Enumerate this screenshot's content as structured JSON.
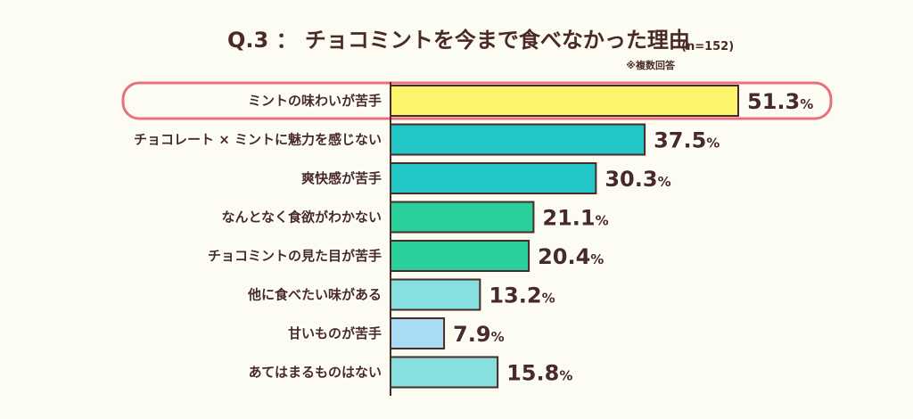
{
  "chart_data": {
    "type": "bar",
    "orientation": "horizontal",
    "title": "Q.3 ： チョコミントを今まで食べなかった理由",
    "title_n": "(n=152)",
    "note": "※複数回答",
    "unit": "%",
    "xlim": [
      0,
      100
    ],
    "categories": [
      "ミントの味わいが苦手",
      "チョコレート × ミントに魅力を感じない",
      "爽快感が苦手",
      "なんとなく食欲がわかない",
      "チョコミントの見た目が苦手",
      "他に食べたい味がある",
      "甘いものが苦手",
      "あてはまるものはない"
    ],
    "values": [
      51.3,
      37.5,
      30.3,
      21.1,
      20.4,
      13.2,
      7.9,
      15.8
    ],
    "value_labels": [
      "51.3",
      "37.5",
      "30.3",
      "21.1",
      "20.4",
      "13.2",
      "7.9",
      "15.8"
    ],
    "colors": [
      "#fbf56b",
      "#22c6c6",
      "#22c6c6",
      "#2bcf9c",
      "#2bcf9c",
      "#86e0df",
      "#a8dcf5",
      "#86e0df"
    ],
    "highlight_index": 0,
    "highlight_color": "#e8707f",
    "axis_color": "#4a2a26",
    "bar_border_color": "#4a2a26"
  }
}
